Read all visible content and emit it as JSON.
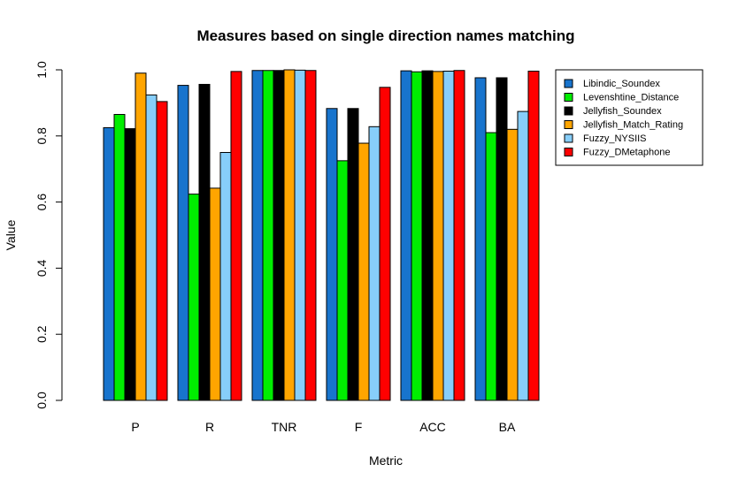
{
  "chart_data": {
    "type": "bar",
    "title": "Measures based on single direction names matching",
    "xlabel": "Metric",
    "ylabel": "Value",
    "ylim": [
      0,
      1.0
    ],
    "yticks": [
      "0.0",
      "0.2",
      "0.4",
      "0.6",
      "0.8",
      "1.0"
    ],
    "categories": [
      "P",
      "R",
      "TNR",
      "F",
      "ACC",
      "BA"
    ],
    "legend_position": "top-right",
    "series": [
      {
        "name": "Libindic_Soundex",
        "color": "#1874cd",
        "values": [
          0.825,
          0.953,
          0.998,
          0.883,
          0.997,
          0.976
        ]
      },
      {
        "name": "Levenshtine_Distance",
        "color": "#00ee00",
        "values": [
          0.865,
          0.624,
          0.998,
          0.725,
          0.994,
          0.81
        ]
      },
      {
        "name": "Jellyfish_Soundex",
        "color": "#000000",
        "values": [
          0.822,
          0.956,
          0.998,
          0.883,
          0.997,
          0.976
        ]
      },
      {
        "name": "Jellyfish_Match_Rating",
        "color": "#ffa500",
        "values": [
          0.99,
          0.642,
          1.0,
          0.778,
          0.995,
          0.82
        ]
      },
      {
        "name": "Fuzzy_NYSIIS",
        "color": "#87cefa",
        "values": [
          0.924,
          0.75,
          0.999,
          0.828,
          0.996,
          0.874
        ]
      },
      {
        "name": "Fuzzy_DMetaphone",
        "color": "#ff0000",
        "values": [
          0.904,
          0.995,
          0.998,
          0.947,
          0.998,
          0.996
        ]
      }
    ]
  }
}
